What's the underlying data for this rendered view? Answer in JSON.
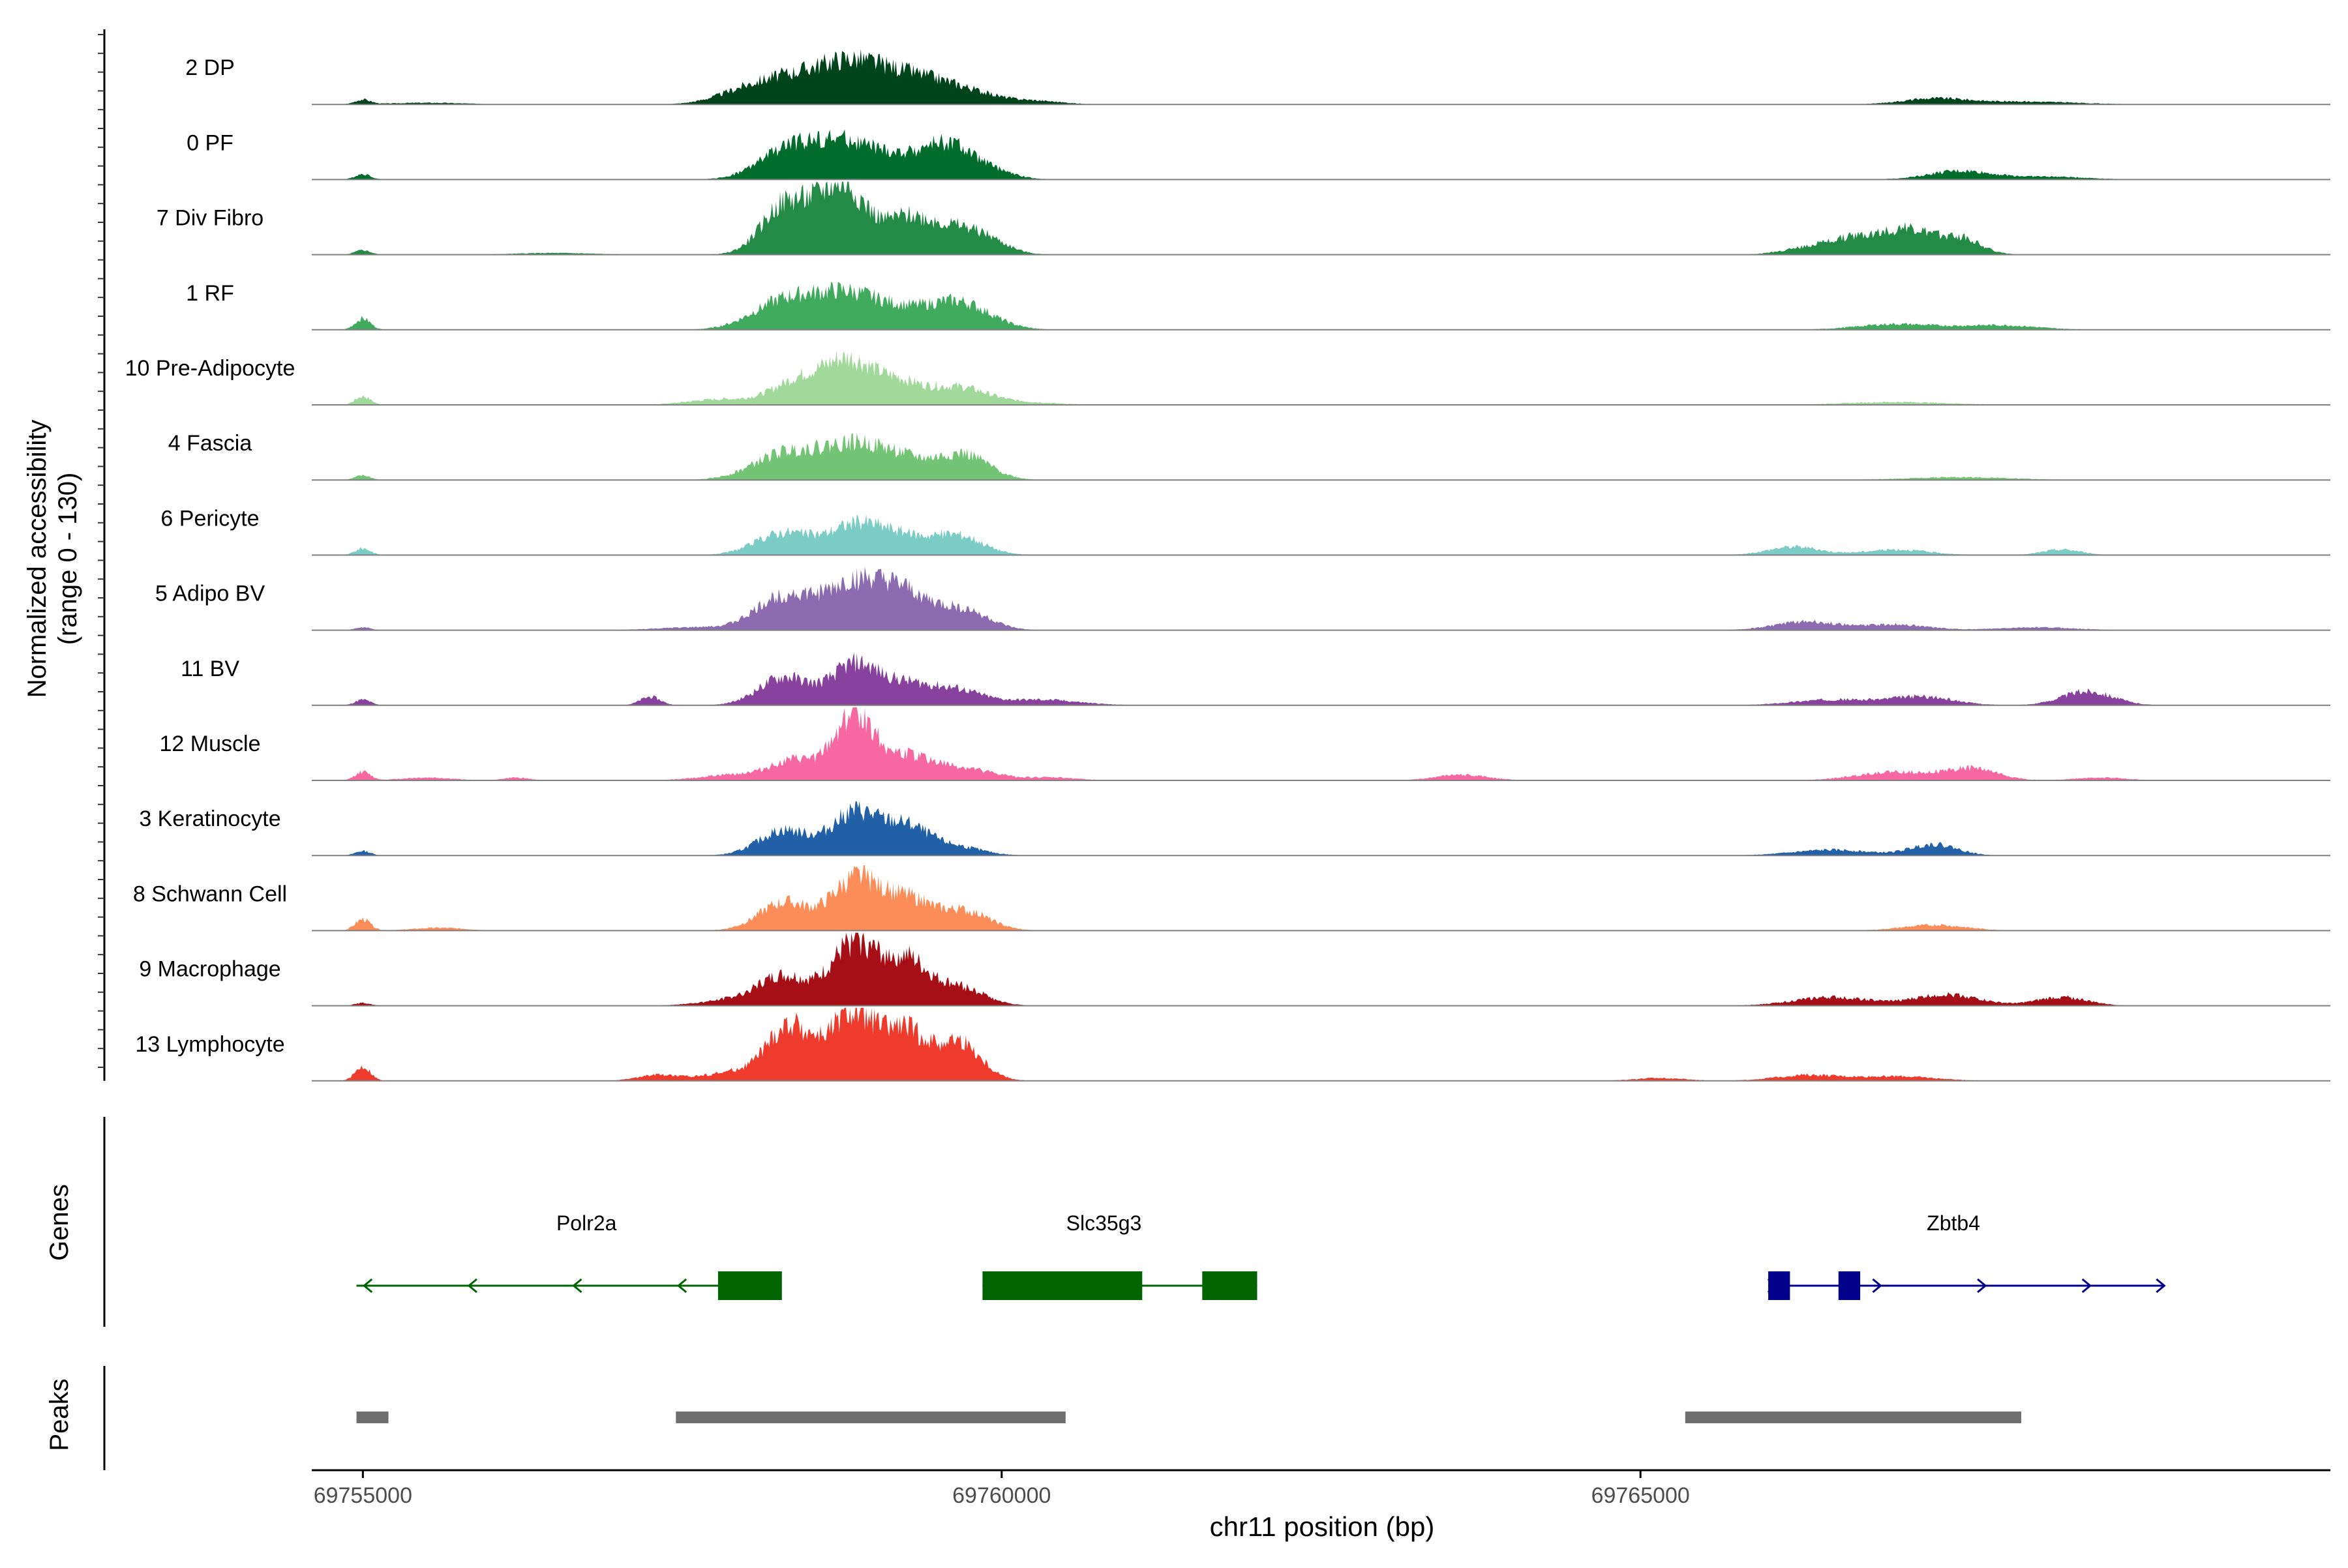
{
  "chart_data": {
    "type": "area",
    "ylabel_line1": "Normalized accessibility",
    "ylabel_line2": "(range 0 - 130)",
    "y_range": [
      0,
      130
    ],
    "xlabel": "chr11 position (bp)",
    "xlim": [
      69754600,
      69770400
    ],
    "x_ticks": [
      {
        "value": 69755000,
        "label": "69755000"
      },
      {
        "value": 69760000,
        "label": "69760000"
      },
      {
        "value": 69765000,
        "label": "69765000"
      }
    ],
    "gene_panel_label": "Genes",
    "peak_panel_label": "Peaks",
    "tracks": [
      {
        "name": "2 DP",
        "color": "#00441b",
        "peaks": [
          [
            69755000,
            8,
            60
          ],
          [
            69755500,
            3,
            300
          ],
          [
            69757900,
            8,
            200
          ],
          [
            69758300,
            45,
            300
          ],
          [
            69758800,
            60,
            250
          ],
          [
            69759200,
            35,
            250
          ],
          [
            69759600,
            30,
            300
          ],
          [
            69760300,
            5,
            200
          ],
          [
            69767300,
            10,
            250
          ],
          [
            69768000,
            5,
            400
          ]
        ]
      },
      {
        "name": "0 PF",
        "color": "#006d2c",
        "peaks": [
          [
            69755000,
            10,
            60
          ],
          [
            69758300,
            45,
            220
          ],
          [
            69758750,
            65,
            260
          ],
          [
            69759200,
            25,
            200
          ],
          [
            69759550,
            55,
            180
          ],
          [
            69759850,
            20,
            200
          ],
          [
            69767500,
            15,
            250
          ],
          [
            69768200,
            5,
            300
          ]
        ]
      },
      {
        "name": "7 Div Fibro",
        "color": "#238b45",
        "peaks": [
          [
            69755000,
            8,
            60
          ],
          [
            69756500,
            3,
            300
          ],
          [
            69758300,
            85,
            180
          ],
          [
            69758750,
            125,
            200
          ],
          [
            69759250,
            55,
            160
          ],
          [
            69759550,
            40,
            180
          ],
          [
            69759850,
            30,
            180
          ],
          [
            69766300,
            10,
            200
          ],
          [
            69766700,
            30,
            220
          ],
          [
            69767100,
            40,
            180
          ],
          [
            69767500,
            30,
            160
          ]
        ]
      },
      {
        "name": "1 RF",
        "color": "#41ab5d",
        "peaks": [
          [
            69755000,
            20,
            60
          ],
          [
            69758300,
            50,
            250
          ],
          [
            69758800,
            60,
            250
          ],
          [
            69759200,
            20,
            200
          ],
          [
            69759650,
            50,
            250
          ],
          [
            69767000,
            10,
            300
          ],
          [
            69767800,
            8,
            300
          ]
        ]
      },
      {
        "name": "10 Pre-Adipocyte",
        "color": "#a1d99b",
        "peaks": [
          [
            69755000,
            15,
            60
          ],
          [
            69757800,
            10,
            250
          ],
          [
            69758400,
            40,
            200
          ],
          [
            69758800,
            75,
            200
          ],
          [
            69759200,
            35,
            180
          ],
          [
            69759650,
            30,
            220
          ],
          [
            69760100,
            5,
            300
          ],
          [
            69767000,
            5,
            400
          ]
        ]
      },
      {
        "name": "4 Fascia",
        "color": "#74c476",
        "peaks": [
          [
            69755000,
            8,
            60
          ],
          [
            69758300,
            45,
            250
          ],
          [
            69758850,
            60,
            260
          ],
          [
            69759250,
            25,
            200
          ],
          [
            69759700,
            45,
            200
          ],
          [
            69767500,
            5,
            400
          ]
        ]
      },
      {
        "name": "6 Pericyte",
        "color": "#7bccc4",
        "peaks": [
          [
            69755000,
            12,
            60
          ],
          [
            69758300,
            40,
            220
          ],
          [
            69758850,
            50,
            200
          ],
          [
            69759200,
            30,
            200
          ],
          [
            69759650,
            35,
            200
          ],
          [
            69766200,
            15,
            200
          ],
          [
            69767000,
            10,
            250
          ],
          [
            69768300,
            10,
            150
          ]
        ]
      },
      {
        "name": "5 Adipo BV",
        "color": "#8c6bb1",
        "peaks": [
          [
            69755000,
            5,
            60
          ],
          [
            69757600,
            5,
            300
          ],
          [
            69758300,
            60,
            220
          ],
          [
            69758850,
            80,
            230
          ],
          [
            69759250,
            55,
            200
          ],
          [
            69759700,
            35,
            200
          ],
          [
            69766300,
            15,
            250
          ],
          [
            69767000,
            10,
            250
          ],
          [
            69768100,
            5,
            300
          ]
        ]
      },
      {
        "name": "11 BV",
        "color": "#88419d",
        "peaks": [
          [
            69755000,
            10,
            60
          ],
          [
            69757250,
            15,
            80
          ],
          [
            69758300,
            50,
            200
          ],
          [
            69758850,
            70,
            180
          ],
          [
            69759250,
            35,
            200
          ],
          [
            69759650,
            25,
            200
          ],
          [
            69760300,
            10,
            300
          ],
          [
            69766500,
            10,
            300
          ],
          [
            69767200,
            15,
            250
          ],
          [
            69768500,
            25,
            200
          ]
        ]
      },
      {
        "name": "12 Muscle",
        "color": "#f768a1",
        "peaks": [
          [
            69755000,
            15,
            60
          ],
          [
            69755500,
            5,
            200
          ],
          [
            69756200,
            5,
            100
          ],
          [
            69757900,
            10,
            250
          ],
          [
            69758400,
            35,
            200
          ],
          [
            69758850,
            115,
            150
          ],
          [
            69759250,
            40,
            200
          ],
          [
            69759700,
            20,
            250
          ],
          [
            69760400,
            5,
            200
          ],
          [
            69763600,
            10,
            200
          ],
          [
            69767000,
            15,
            300
          ],
          [
            69767600,
            20,
            200
          ],
          [
            69768600,
            5,
            200
          ]
        ]
      },
      {
        "name": "3 Keratinocyte",
        "color": "#2260a8",
        "peaks": [
          [
            69755000,
            8,
            60
          ],
          [
            69758300,
            45,
            200
          ],
          [
            69758850,
            75,
            180
          ],
          [
            69759250,
            50,
            180
          ],
          [
            69759650,
            15,
            200
          ],
          [
            69766500,
            10,
            300
          ],
          [
            69767300,
            20,
            180
          ]
        ]
      },
      {
        "name": "8 Schwann Cell",
        "color": "#fc8d59",
        "peaks": [
          [
            69755000,
            20,
            60
          ],
          [
            69755600,
            5,
            200
          ],
          [
            69758300,
            50,
            200
          ],
          [
            69758850,
            90,
            180
          ],
          [
            69759250,
            55,
            180
          ],
          [
            69759700,
            35,
            200
          ],
          [
            69767300,
            10,
            250
          ]
        ]
      },
      {
        "name": "9 Macrophage",
        "color": "#a50f15",
        "peaks": [
          [
            69755000,
            5,
            60
          ],
          [
            69757900,
            10,
            250
          ],
          [
            69758300,
            50,
            200
          ],
          [
            69758850,
            110,
            180
          ],
          [
            69759250,
            75,
            160
          ],
          [
            69759650,
            35,
            200
          ],
          [
            69766500,
            15,
            300
          ],
          [
            69767400,
            20,
            250
          ],
          [
            69768300,
            15,
            200
          ]
        ]
      },
      {
        "name": "13 Lymphocyte",
        "color": "#ef3b2c",
        "peaks": [
          [
            69755000,
            25,
            60
          ],
          [
            69757300,
            10,
            150
          ],
          [
            69757900,
            15,
            250
          ],
          [
            69758350,
            95,
            180
          ],
          [
            69758850,
            120,
            180
          ],
          [
            69759250,
            80,
            150
          ],
          [
            69759650,
            70,
            180
          ],
          [
            69765150,
            5,
            200
          ],
          [
            69766300,
            10,
            250
          ],
          [
            69767000,
            8,
            300
          ]
        ]
      }
    ],
    "genes": [
      {
        "name": "Polr2a",
        "color": "#006400",
        "strand": "-",
        "start": 69754950,
        "end": 69758000,
        "exons": [
          [
            69757780,
            69758280
          ]
        ],
        "label_x": 69756750
      },
      {
        "name": "Slc35g3",
        "color": "#006400",
        "strand": "",
        "start": 69759850,
        "end": 69762000,
        "exons": [
          [
            69759850,
            69761100
          ],
          [
            69761570,
            69762000
          ]
        ],
        "label_x": 69760800
      },
      {
        "name": "Zbtb4",
        "color": "#00008b",
        "strand": "+",
        "start": 69766000,
        "end": 69769100,
        "exons": [
          [
            69766000,
            69766170
          ],
          [
            69766550,
            69766720
          ]
        ],
        "label_x": 69767450
      }
    ],
    "peaks_region": [
      [
        69754950,
        69755200
      ],
      [
        69757450,
        69760500
      ],
      [
        69765350,
        69767980
      ]
    ]
  }
}
